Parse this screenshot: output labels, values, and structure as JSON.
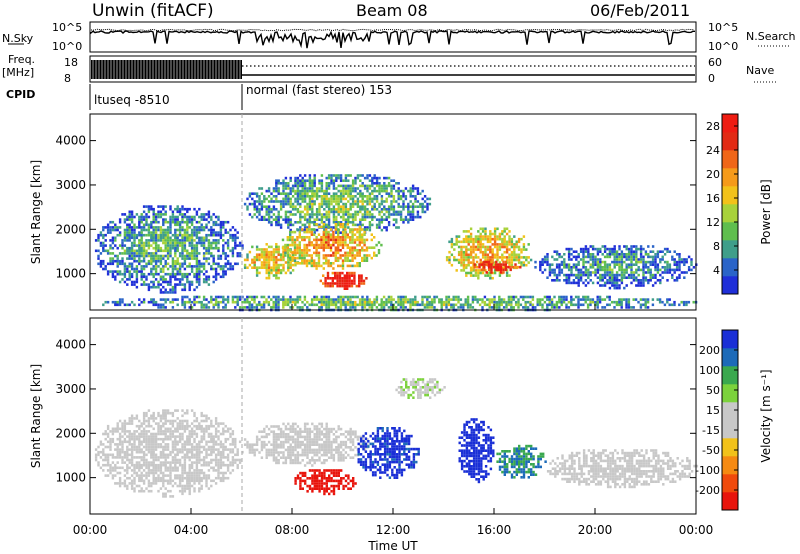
{
  "header": {
    "title": "Unwin (fitACF)",
    "beam": "Beam 08",
    "date": "06/Feb/2011"
  },
  "status_panels": {
    "nsky_label": "N.Sky",
    "nsky_ticks": [
      "10^5",
      "10^0"
    ],
    "nsearch_label": "N.Search",
    "nsearch_ticks": [
      "10^5",
      "10^0"
    ],
    "freq_label": "Freq.",
    "freq_unit": "[MHz]",
    "freq_ticks": [
      "18",
      "8"
    ],
    "nave_label": "Nave",
    "nave_ticks": [
      "60",
      "0"
    ],
    "cpid_label": "CPID",
    "cpid_segments": [
      {
        "name": "ltuseq -8510",
        "start_hour": 0,
        "end_hour": 6
      },
      {
        "name": "normal (fast stereo) 153",
        "start_hour": 6,
        "end_hour": 24
      }
    ]
  },
  "chart_data": [
    {
      "type": "heatmap",
      "title": "",
      "quantity": "Power",
      "colorbar_label": "Power [dB]",
      "colorbar_ticks": [
        "4",
        "8",
        "12",
        "16",
        "20",
        "24",
        "28"
      ],
      "colorbar_range": [
        0,
        30
      ],
      "colors": [
        "#1f2fd8",
        "#2a64c8",
        "#3f9e8a",
        "#5fbe4e",
        "#a8d23a",
        "#f2c21a",
        "#f59a1a",
        "#f06618",
        "#e22a14",
        "#ee1c12"
      ],
      "ylabel": "Slant Range [km]",
      "yticks": [
        "1000",
        "2000",
        "3000",
        "4000"
      ],
      "ylim": [
        180,
        4600
      ],
      "xlim": [
        0,
        24
      ],
      "regions": [
        {
          "x": [
            0.1,
            6.0
          ],
          "y": [
            600,
            2600
          ],
          "level": 0.25
        },
        {
          "x": [
            6.0,
            8.2
          ],
          "y": [
            900,
            1750
          ],
          "level": 0.55
        },
        {
          "x": [
            6.0,
            13.5
          ],
          "y": [
            1900,
            3300
          ],
          "level": 0.3
        },
        {
          "x": [
            7.5,
            11.5
          ],
          "y": [
            1100,
            2200
          ],
          "level": 0.6
        },
        {
          "x": [
            9.0,
            11.0
          ],
          "y": [
            680,
            1100
          ],
          "level": 0.95
        },
        {
          "x": [
            14.0,
            17.5
          ],
          "y": [
            900,
            2100
          ],
          "level": 0.55
        },
        {
          "x": [
            15.0,
            17.0
          ],
          "y": [
            1000,
            1350
          ],
          "level": 0.9
        },
        {
          "x": [
            17.5,
            24.0
          ],
          "y": [
            700,
            1700
          ],
          "level": 0.2
        },
        {
          "x": [
            0.1,
            24.0
          ],
          "y": [
            180,
            560
          ],
          "level": 0.3
        }
      ]
    },
    {
      "type": "heatmap",
      "title": "",
      "quantity": "Velocity",
      "colorbar_label": "Velocity [m s⁻¹]",
      "colorbar_ticks": [
        "-200",
        "-100",
        "-50",
        "-15",
        "15",
        "50",
        "100",
        "200"
      ],
      "colorbar_range": [
        -250,
        250
      ],
      "colors": [
        "#e8140c",
        "#f04a0c",
        "#f58a12",
        "#f2c21a",
        "#c8c8c8",
        "#c8c8c8",
        "#7cd23c",
        "#3aa84e",
        "#1c6ab8",
        "#1a2fd6"
      ],
      "ylabel": "Slant Range [km]",
      "yticks": [
        "1000",
        "2000",
        "3000",
        "4000"
      ],
      "ylim": [
        180,
        4600
      ],
      "xlim": [
        0,
        24
      ],
      "xlabel": "Time UT",
      "xticks": [
        "00:00",
        "04:00",
        "08:00",
        "12:00",
        "16:00",
        "20:00",
        "00:00"
      ],
      "regions": [
        {
          "x": [
            0.1,
            6.0
          ],
          "y": [
            600,
            2600
          ],
          "value": 0
        },
        {
          "x": [
            6.0,
            11.0
          ],
          "y": [
            1300,
            2300
          ],
          "value": 0
        },
        {
          "x": [
            8.0,
            10.5
          ],
          "y": [
            650,
            1250
          ],
          "value": -230
        },
        {
          "x": [
            10.5,
            13.0
          ],
          "y": [
            1000,
            2200
          ],
          "value": 220
        },
        {
          "x": [
            14.5,
            16.0
          ],
          "y": [
            900,
            2400
          ],
          "value": 240
        },
        {
          "x": [
            16.0,
            18.0
          ],
          "y": [
            1000,
            1800
          ],
          "value": 150
        },
        {
          "x": [
            18.0,
            24.0
          ],
          "y": [
            800,
            1700
          ],
          "value": 0
        },
        {
          "x": [
            12.0,
            14.0
          ],
          "y": [
            2800,
            3300
          ],
          "value": 40
        }
      ]
    }
  ]
}
